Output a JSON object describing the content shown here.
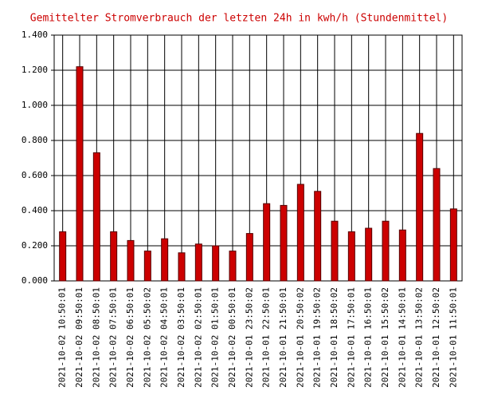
{
  "chart_data": {
    "type": "bar",
    "title": "Gemittelter Stromverbrauch der letzten 24h in kwh/h (Stundenmittel)",
    "categories": [
      "2021-10-02 10:50:01",
      "2021-10-02 09:50:01",
      "2021-10-02 08:50:01",
      "2021-10-02 07:50:01",
      "2021-10-02 06:50:01",
      "2021-10-02 05:50:02",
      "2021-10-02 04:50:01",
      "2021-10-02 03:50:01",
      "2021-10-02 02:50:01",
      "2021-10-02 01:50:01",
      "2021-10-02 00:50:01",
      "2021-10-01 23:50:02",
      "2021-10-01 22:50:01",
      "2021-10-01 21:50:01",
      "2021-10-01 20:50:02",
      "2021-10-01 19:50:02",
      "2021-10-01 18:50:02",
      "2021-10-01 17:50:01",
      "2021-10-01 16:50:01",
      "2021-10-01 15:50:02",
      "2021-10-01 14:50:01",
      "2021-10-01 13:50:02",
      "2021-10-01 12:50:02",
      "2021-10-01 11:50:01"
    ],
    "values": [
      0.28,
      1.22,
      0.73,
      0.28,
      0.23,
      0.17,
      0.24,
      0.16,
      0.21,
      0.2,
      0.17,
      0.27,
      0.44,
      0.43,
      0.55,
      0.51,
      0.34,
      0.28,
      0.3,
      0.34,
      0.29,
      0.84,
      0.64,
      0.41
    ],
    "color": "#cc0000",
    "ylim": [
      0,
      1.4
    ],
    "yticks": [
      {
        "value": 0,
        "label": "0.000"
      },
      {
        "value": 0.2,
        "label": "0.200"
      },
      {
        "value": 0.4,
        "label": "0.400"
      },
      {
        "value": 0.6,
        "label": "0.600"
      },
      {
        "value": 0.8,
        "label": "0.800"
      },
      {
        "value": 1.0,
        "label": "1.000"
      },
      {
        "value": 1.2,
        "label": "1.200"
      },
      {
        "value": 1.4,
        "label": "1.400"
      }
    ],
    "grid": true
  }
}
